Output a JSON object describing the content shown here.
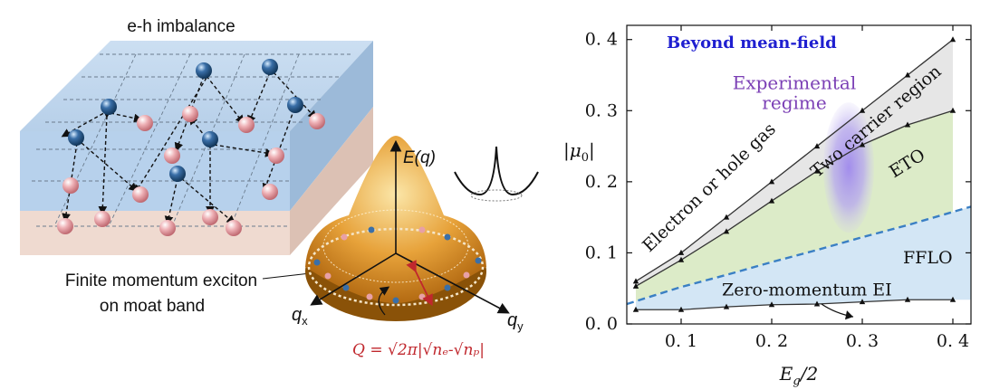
{
  "left": {
    "slab_title": "e-h imbalance",
    "exciton_caption_line1": "Finite momentum exciton",
    "exciton_caption_line2": "on moat band",
    "energy_axis": "E(q)",
    "qx_label": "q",
    "qx_sub": "x",
    "qy_label": "q",
    "qy_sub": "y",
    "formula": "Q = √2π|√nₑ-√nₚ|",
    "colors": {
      "electron": "#3a6fa8",
      "hole": "#e8a0a6",
      "slab_top": "#b9d3ec",
      "slab_bottom": "#efd9cf",
      "band": "#e6a23c",
      "formula": "#c0272d"
    }
  },
  "chart_data": {
    "type": "line",
    "title": "Beyond mean-field",
    "xlabel": "Eg/2",
    "ylabel": "|μ0|",
    "xlim": [
      0.04,
      0.42
    ],
    "ylim": [
      0.0,
      0.42
    ],
    "xticks": [
      0.1,
      0.2,
      0.3,
      0.4
    ],
    "xtick_labels": [
      "0. 1",
      "0. 2",
      "0. 3",
      "0. 4"
    ],
    "yticks": [
      0.0,
      0.1,
      0.2,
      0.3,
      0.4
    ],
    "ytick_labels": [
      "0. 0",
      "0. 1",
      "0. 2",
      "0. 3",
      "0. 4"
    ],
    "series": [
      {
        "x": [
          0.05,
          0.1,
          0.15,
          0.2,
          0.25,
          0.3,
          0.35,
          0.4
        ],
        "y": [
          0.06,
          0.1,
          0.15,
          0.2,
          0.25,
          0.3,
          0.35,
          0.4
        ]
      },
      {
        "x": [
          0.05,
          0.1,
          0.15,
          0.2,
          0.25,
          0.3,
          0.35,
          0.4
        ],
        "y": [
          0.053,
          0.09,
          0.13,
          0.173,
          0.215,
          0.252,
          0.28,
          0.3
        ]
      },
      {
        "x": [
          0.05,
          0.1,
          0.15,
          0.2,
          0.25,
          0.3,
          0.35,
          0.4
        ],
        "y": [
          0.02,
          0.02,
          0.024,
          0.027,
          0.028,
          0.031,
          0.034,
          0.034
        ]
      },
      {
        "x": [
          0.04,
          0.1,
          0.15,
          0.2,
          0.25,
          0.3,
          0.35,
          0.42
        ],
        "y": [
          0.028,
          0.052,
          0.069,
          0.087,
          0.104,
          0.122,
          0.139,
          0.165
        ]
      }
    ],
    "region_labels": {
      "electron_hole_gas": "Electron or hole gas",
      "two_carrier": "Two carrier region",
      "eto": "ETO",
      "fflo": "FFLO",
      "zero_momentum": "Zero-momentum EI",
      "experimental": "Experimental",
      "experimental_line2": "regime"
    },
    "colors": {
      "gray_region": "#e6e6e6",
      "green_region": "#dcebc8",
      "blue_region": "#d3e6f5",
      "dashed": "#3a7fc4",
      "title": "#1f1fd0",
      "ellipse": "#b9a8ee",
      "experimental_text": "#7b3fb5"
    }
  }
}
